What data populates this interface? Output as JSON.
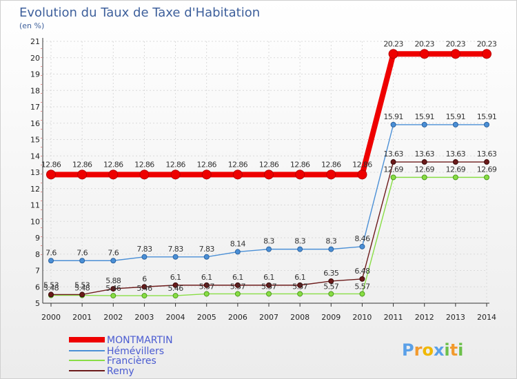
{
  "chart_data": {
    "type": "line",
    "title": "Evolution du Taux de Taxe d'Habitation",
    "subtitle": "(en %)",
    "x": [
      2000,
      2001,
      2002,
      2003,
      2004,
      2005,
      2006,
      2007,
      2008,
      2009,
      2010,
      2011,
      2012,
      2013,
      2014
    ],
    "x_tick_labels": [
      "2000",
      "2001",
      "2002",
      "2003",
      "2004",
      "2005",
      "2006",
      "2007",
      "2008",
      "2009",
      "2010",
      "2011",
      "2012",
      "2013",
      "2014"
    ],
    "ylim": [
      5,
      21
    ],
    "y_tick_labels": [
      "5",
      "6",
      "7",
      "8",
      "9",
      "10",
      "11",
      "12",
      "13",
      "14",
      "15",
      "16",
      "17",
      "18",
      "19",
      "20",
      "21"
    ],
    "grid": true,
    "legend_position": "bottom-left",
    "series": [
      {
        "name": "MONTMARTIN",
        "color": "#ee0000",
        "values": [
          12.86,
          12.86,
          12.86,
          12.86,
          12.86,
          12.86,
          12.86,
          12.86,
          12.86,
          12.86,
          12.86,
          20.23,
          20.23,
          20.23,
          20.23
        ],
        "labels": [
          "12.86",
          "12.86",
          "12.86",
          "12.86",
          "12.86",
          "12.86",
          "12.86",
          "12.86",
          "12.86",
          "12.86",
          "12.86",
          "20.23",
          "20.23",
          "20.23",
          "20.23"
        ]
      },
      {
        "name": "Hémévillers",
        "color": "#4a8fd6",
        "values": [
          7.6,
          7.6,
          7.6,
          7.83,
          7.83,
          7.83,
          8.14,
          8.3,
          8.3,
          8.3,
          8.46,
          15.91,
          15.91,
          15.91,
          15.91
        ],
        "labels": [
          "7.6",
          "7.6",
          "7.6",
          "7.83",
          "7.83",
          "7.83",
          "8.14",
          "8.3",
          "8.3",
          "8.3",
          "8.46",
          "15.91",
          "15.91",
          "15.91",
          "15.91"
        ]
      },
      {
        "name": "Francières",
        "color": "#88dd44",
        "values": [
          5.48,
          5.48,
          5.46,
          5.46,
          5.46,
          5.57,
          5.57,
          5.57,
          5.57,
          5.57,
          5.57,
          12.69,
          12.69,
          12.69,
          12.69
        ],
        "labels": [
          "5.48",
          "5.48",
          "5.46",
          "5.46",
          "5.46",
          "5.57",
          "5.57",
          "5.57",
          "5.57",
          "5.57",
          "5.57",
          "12.69",
          "12.69",
          "12.69",
          "12.69"
        ]
      },
      {
        "name": "Remy",
        "color": "#6b1a1a",
        "values": [
          5.53,
          5.53,
          5.88,
          6,
          6.1,
          6.1,
          6.1,
          6.1,
          6.1,
          6.35,
          6.48,
          13.63,
          13.63,
          13.63,
          13.63
        ],
        "labels": [
          "5.53",
          "5.53",
          "5.88",
          "6",
          "6.1",
          "6.1",
          "6.1",
          "6.1",
          "6.1",
          "6.35",
          "6.48",
          "13.63",
          "13.63",
          "13.63",
          "13.63"
        ]
      }
    ],
    "brand": {
      "letters": [
        "P",
        "r",
        "o",
        "x",
        "i",
        "t",
        "i"
      ],
      "colors": [
        "#5aa0e8",
        "#f29a2e",
        "#f0b800",
        "#5aa0e8",
        "#6cc04a",
        "#f29a2e",
        "#6cc04a"
      ]
    }
  }
}
